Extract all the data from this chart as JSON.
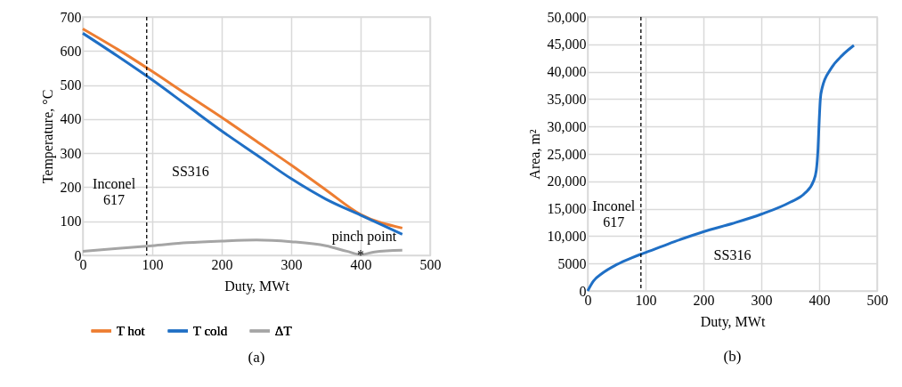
{
  "chart_data": [
    {
      "type": "line",
      "title": "(a)",
      "xlabel": "Duty, MWt",
      "ylabel": "Temperature, °C",
      "xlim": [
        0,
        500
      ],
      "xticks": [
        0,
        100,
        200,
        300,
        400,
        500
      ],
      "ylim": [
        0,
        700
      ],
      "yticks": [
        0,
        100,
        200,
        300,
        400,
        500,
        600,
        700
      ],
      "grid": true,
      "legend": "bottom",
      "series": [
        {
          "name": "T hot",
          "color": "#ed7d31",
          "x": [
            0,
            50,
            100,
            150,
            200,
            250,
            300,
            350,
            400,
            460
          ],
          "values": [
            665,
            605,
            540,
            472,
            405,
            335,
            265,
            192,
            120,
            80
          ]
        },
        {
          "name": "T cold",
          "color": "#1f6fc5",
          "x": [
            0,
            50,
            100,
            150,
            200,
            250,
            300,
            350,
            400,
            460
          ],
          "values": [
            652,
            585,
            515,
            440,
            365,
            295,
            225,
            165,
            118,
            62
          ]
        },
        {
          "name": "ΔT",
          "color": "#a5a5a5",
          "x": [
            0,
            50,
            100,
            150,
            200,
            250,
            300,
            350,
            380,
            400,
            420,
            460
          ],
          "values": [
            12,
            20,
            28,
            37,
            42,
            45,
            40,
            28,
            12,
            2,
            10,
            15
          ]
        }
      ],
      "ref_lines": [
        {
          "axis": "x",
          "value": 92,
          "color": "#000000",
          "line_style": "dashed"
        }
      ],
      "annotations": [
        "Inconel\n617",
        "SS316",
        "pinch point",
        {
          "text": "*",
          "x": 400,
          "y": 0
        }
      ]
    },
    {
      "type": "line",
      "title": "(b)",
      "xlabel": "Duty, MWt",
      "ylabel": "Area, m²",
      "xlim": [
        0,
        500
      ],
      "xticks": [
        0,
        100,
        200,
        300,
        400,
        500
      ],
      "ylim": [
        0,
        50000
      ],
      "yticks": [
        0,
        5000,
        {
          "value": 10000,
          "label": "10,000"
        },
        {
          "value": 15000,
          "label": "15,000"
        },
        {
          "value": 20000,
          "label": "20,000"
        },
        {
          "value": 25000,
          "label": "25,000"
        },
        {
          "value": 30000,
          "label": "30,000"
        },
        {
          "value": 35000,
          "label": "35,000"
        },
        {
          "value": 40000,
          "label": "40,000"
        },
        {
          "value": 45000,
          "label": "45,000"
        },
        {
          "value": 50000,
          "label": "50,000"
        }
      ],
      "grid": true,
      "series": [
        {
          "color": "#1f6fc5",
          "x": [
            0,
            10,
            25,
            50,
            75,
            92,
            100,
            150,
            200,
            250,
            300,
            350,
            375,
            390,
            395,
            398,
            400,
            402,
            405,
            420,
            440,
            460
          ],
          "values": [
            0,
            1800,
            3200,
            4800,
            6000,
            6700,
            7000,
            9000,
            10800,
            12300,
            14000,
            16200,
            17800,
            20000,
            22000,
            26000,
            31000,
            35000,
            37000,
            40500,
            43000,
            44800
          ]
        }
      ],
      "ref_lines": [
        {
          "axis": "x",
          "value": 92,
          "color": "#000000",
          "line_style": "dashed"
        }
      ],
      "annotations": [
        "Inconel\n617",
        "SS316"
      ]
    }
  ]
}
